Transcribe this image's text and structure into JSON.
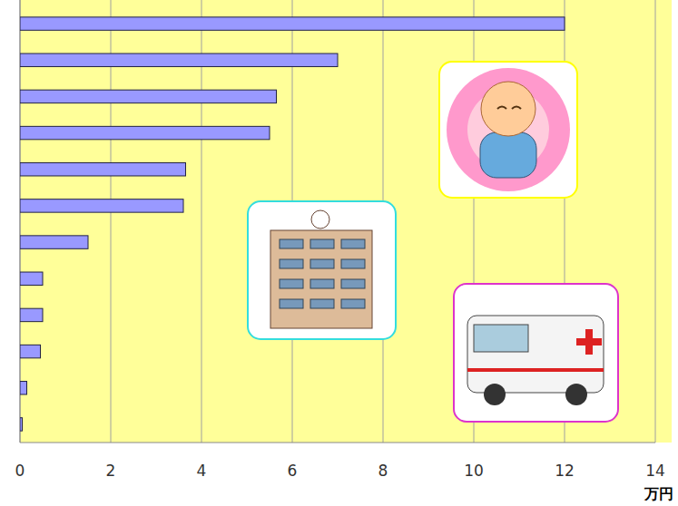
{
  "chart_data": {
    "type": "bar",
    "orientation": "horizontal",
    "categories": [
      null,
      null,
      null,
      null,
      null,
      null,
      null,
      null,
      null,
      null,
      null,
      null
    ],
    "values": [
      12,
      7,
      5.65,
      5.5,
      3.65,
      3.6,
      1.5,
      0.5,
      0.5,
      0.45,
      0.15,
      0.05
    ],
    "color": "#9999ff",
    "x_label": "万円",
    "xlim": [
      0,
      14
    ],
    "xticks": [
      0,
      2,
      4,
      6,
      8,
      10,
      12,
      14
    ],
    "grid": true
  }
}
